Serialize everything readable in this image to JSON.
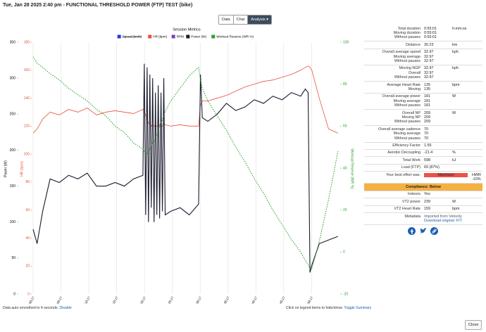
{
  "header": {
    "title": "Tue, Jan 28 2025 2:40 pm - FUNCTIONAL THRESHOLD POWER (FTP) TEST (bike)"
  },
  "tabs": [
    "Data",
    "Chat",
    "Analysis"
  ],
  "chart_data": {
    "type": "line",
    "title": "Session Metrics",
    "ylabel": "Power (W)",
    "y2label": "HR (bpm)",
    "y3label": "Workout Reserve (WR %)",
    "xlim": [
      17,
      3318
    ],
    "xticks": [
      {
        "value": 17,
        "label": "0:00:17"
      },
      {
        "value": 317,
        "label": "0:05:17"
      },
      {
        "value": 617,
        "label": "0:10:17"
      },
      {
        "value": 917,
        "label": "0:15:17"
      },
      {
        "value": 1217,
        "label": "0:20:17"
      },
      {
        "value": 1517,
        "label": "0:25:17"
      },
      {
        "value": 1817,
        "label": "0:30:17"
      },
      {
        "value": 2117,
        "label": "0:35:17"
      },
      {
        "value": 2417,
        "label": "0:40:17"
      },
      {
        "value": 2717,
        "label": "0:45:17"
      },
      {
        "value": 3017,
        "label": "0:50:17"
      }
    ],
    "ylim": [
      0,
      350
    ],
    "yticks": [
      0,
      50,
      100,
      150,
      200,
      250,
      300,
      350
    ],
    "y2lim": [
      0,
      180
    ],
    "y2ticks": [
      0,
      20,
      40,
      60,
      80,
      100,
      120,
      140,
      160,
      180
    ],
    "y3lim": [
      -20,
      100
    ],
    "y3ticks": [
      -20,
      0,
      20,
      40,
      60,
      80,
      100
    ],
    "x": [
      17,
      60,
      120,
      200,
      300,
      400,
      500,
      600,
      700,
      800,
      900,
      1000,
      1100,
      1200,
      1215,
      1230,
      1245,
      1260,
      1275,
      1290,
      1305,
      1320,
      1335,
      1350,
      1365,
      1380,
      1395,
      1410,
      1425,
      1440,
      1500,
      1600,
      1700,
      1800,
      1820,
      1840,
      1900,
      2000,
      2100,
      2200,
      2300,
      2400,
      2500,
      2600,
      2700,
      2800,
      2900,
      2950,
      2980,
      3000,
      3020,
      3100,
      3200,
      3301
    ],
    "series": [
      {
        "name": "Speed (km/h)",
        "color": "#1d3fd1",
        "hidden": true
      },
      {
        "name": "HR (bpm)",
        "color": "#e8503a",
        "axis": "y2",
        "values": [
          115,
          118,
          125,
          130,
          128,
          132,
          130,
          133,
          128,
          130,
          131,
          130,
          129,
          132,
          130,
          128,
          125,
          122,
          122,
          120,
          121,
          120,
          120,
          120,
          121,
          121,
          120,
          120,
          122,
          121,
          120,
          121,
          120,
          120,
          135,
          138,
          138,
          140,
          142,
          145,
          148,
          150,
          152,
          153,
          155,
          157,
          160,
          162,
          163,
          162,
          160,
          140,
          118,
          115
        ]
      },
      {
        "name": "RPM",
        "color": "#7b3fc4"
      },
      {
        "name": "Power (W)",
        "color": "#1a1a2e",
        "values": [
          90,
          70,
          115,
          160,
          155,
          165,
          160,
          168,
          150,
          150,
          155,
          150,
          160,
          165,
          320,
          110,
          315,
          100,
          305,
          120,
          300,
          100,
          280,
          110,
          290,
          105,
          280,
          115,
          300,
          110,
          115,
          120,
          110,
          125,
          305,
          245,
          240,
          250,
          265,
          255,
          260,
          270,
          265,
          275,
          270,
          280,
          275,
          285,
          280,
          30,
          40,
          70,
          75,
          80
        ]
      },
      {
        "name": "Workout Reserve (WR %)",
        "color": "#2ca02c",
        "axis": "y3",
        "dashed": true,
        "values": [
          93,
          90,
          88,
          85,
          82,
          78,
          75,
          72,
          68,
          65,
          60,
          57,
          52,
          49,
          48,
          48,
          47,
          48,
          49,
          50,
          52,
          53,
          55,
          56,
          58,
          60,
          62,
          63,
          65,
          67,
          72,
          78,
          84,
          88,
          82,
          78,
          72,
          65,
          58,
          50,
          43,
          35,
          28,
          20,
          13,
          6,
          0,
          -4,
          -6,
          -8,
          -8,
          5,
          25,
          48
        ]
      }
    ],
    "grid": true
  },
  "summary": {
    "rows": [
      {
        "labels": [
          "Total duration",
          "Moving duration",
          "Without pauses"
        ],
        "values": [
          "0:55:01",
          "0:55:01",
          "0:55:01"
        ],
        "unit": "h:mm:ss"
      },
      {
        "labels": [
          "Distance"
        ],
        "values": [
          30.23
        ],
        "unit": "km"
      },
      {
        "labels": [
          "Overall average speed",
          "Moving average",
          "Without pauses"
        ],
        "values": [
          32.97,
          32.97,
          32.97
        ],
        "unit": "kph"
      },
      {
        "labels": [
          "Moving NGP",
          "Overall",
          "Without pauses"
        ],
        "values": [
          32.97,
          32.97,
          32.97
        ],
        "unit": "kph"
      },
      {
        "labels": [
          "Average Heart Rate",
          "Moving"
        ],
        "values": [
          135,
          135
        ],
        "unit": "bpm"
      },
      {
        "labels": [
          "Overall average power",
          "Moving average",
          "Without pauses"
        ],
        "values": [
          181,
          181,
          181
        ],
        "unit": "W"
      },
      {
        "labels": [
          "Overall NP",
          "Moving NP",
          "Without pauses"
        ],
        "values": [
          209,
          209,
          209
        ],
        "unit": "W"
      },
      {
        "labels": [
          "Overall average cadence",
          "Moving average",
          "Without pauses"
        ],
        "values": [
          70,
          70,
          70
        ]
      },
      {
        "labels": [
          "Efficiency Factor"
        ],
        "values": [
          1.55
        ]
      },
      {
        "labels": [
          "Aerobic Decoupling"
        ],
        "values": [
          -21.4
        ],
        "unit": "%"
      },
      {
        "labels": [
          "Total Work"
        ],
        "values": [
          598
        ],
        "unit": "kJ"
      },
      {
        "labels": [
          "Load (FTP)"
        ],
        "values": [
          "69 (87%)"
        ]
      },
      {
        "labels": [
          "Your best effort was:"
        ],
        "values": [
          "Maximum"
        ],
        "unit": "HWR -10%",
        "badge": true
      },
      {
        "banner": "Compliance: Below"
      },
      {
        "labels": [
          "Indoors"
        ],
        "values": [
          "Yes"
        ]
      },
      {
        "labels": [
          "VT2 power"
        ],
        "values": [
          239
        ],
        "unit": "W"
      },
      {
        "labels": [
          "VT2 Heart Rate"
        ],
        "values": [
          159
        ],
        "unit": "bpm"
      }
    ],
    "metadata": {
      "label": "Metadata",
      "source": "Imported from Velocity",
      "download": "Download original .FIT"
    }
  },
  "footer": {
    "left_text": "Data auto smoothed to 4 seconds.",
    "left_link": "Disable",
    "right_text": "Click on legend items to hide/show.",
    "right_link": "Toggle Summary",
    "close": "Close"
  }
}
